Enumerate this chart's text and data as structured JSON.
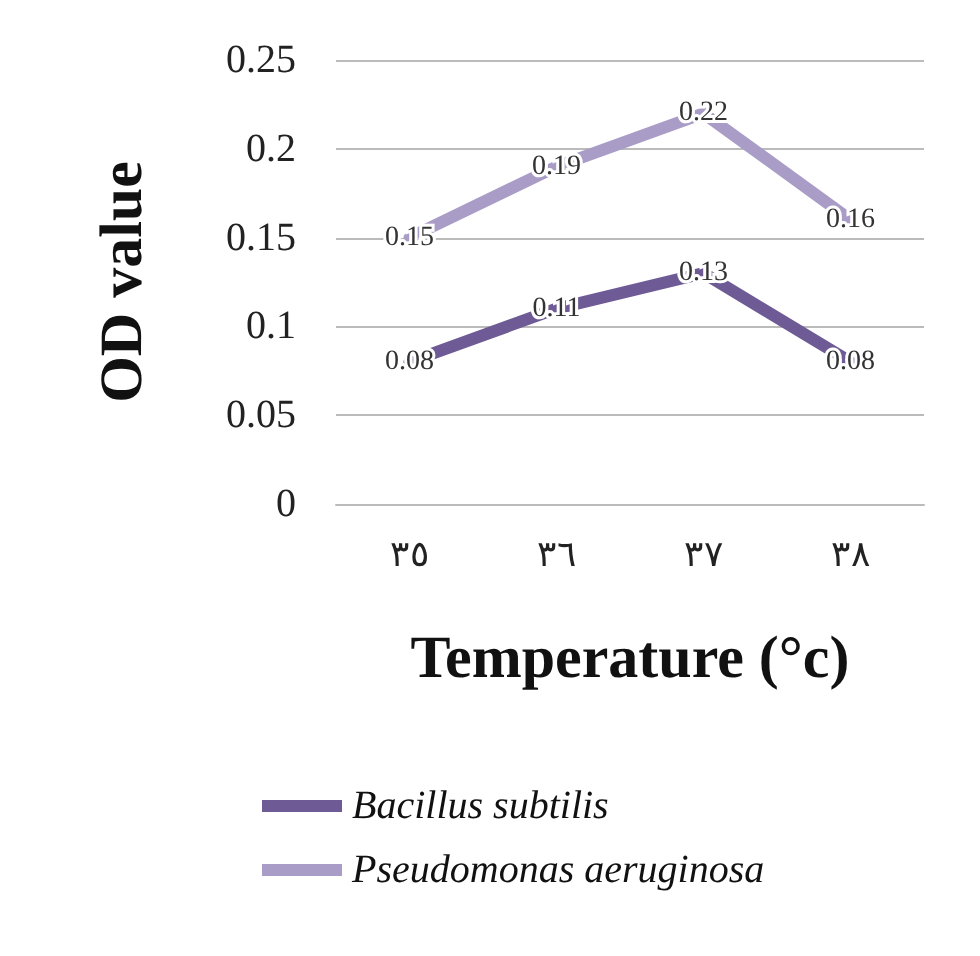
{
  "chart_data": {
    "type": "line",
    "xlabel": "Temperature (°c)",
    "ylabel": "OD value",
    "categories": [
      "٣٥",
      "٣٦",
      "٣٧",
      "٣٨"
    ],
    "series": [
      {
        "name": "Bacillus subtilis",
        "color": "#6e5a94",
        "values": [
          0.08,
          0.11,
          0.13,
          0.08
        ]
      },
      {
        "name": "Pseudomonas aeruginosa",
        "color": "#a99cc6",
        "values": [
          0.15,
          0.19,
          0.22,
          0.16
        ]
      }
    ],
    "ylim": [
      0,
      0.25
    ],
    "yticks": [
      0,
      0.05,
      0.1,
      0.15,
      0.2,
      0.25
    ],
    "grid": "y",
    "legend": "bottom",
    "marker": "none",
    "line_style": "solid",
    "data_labels": true
  }
}
